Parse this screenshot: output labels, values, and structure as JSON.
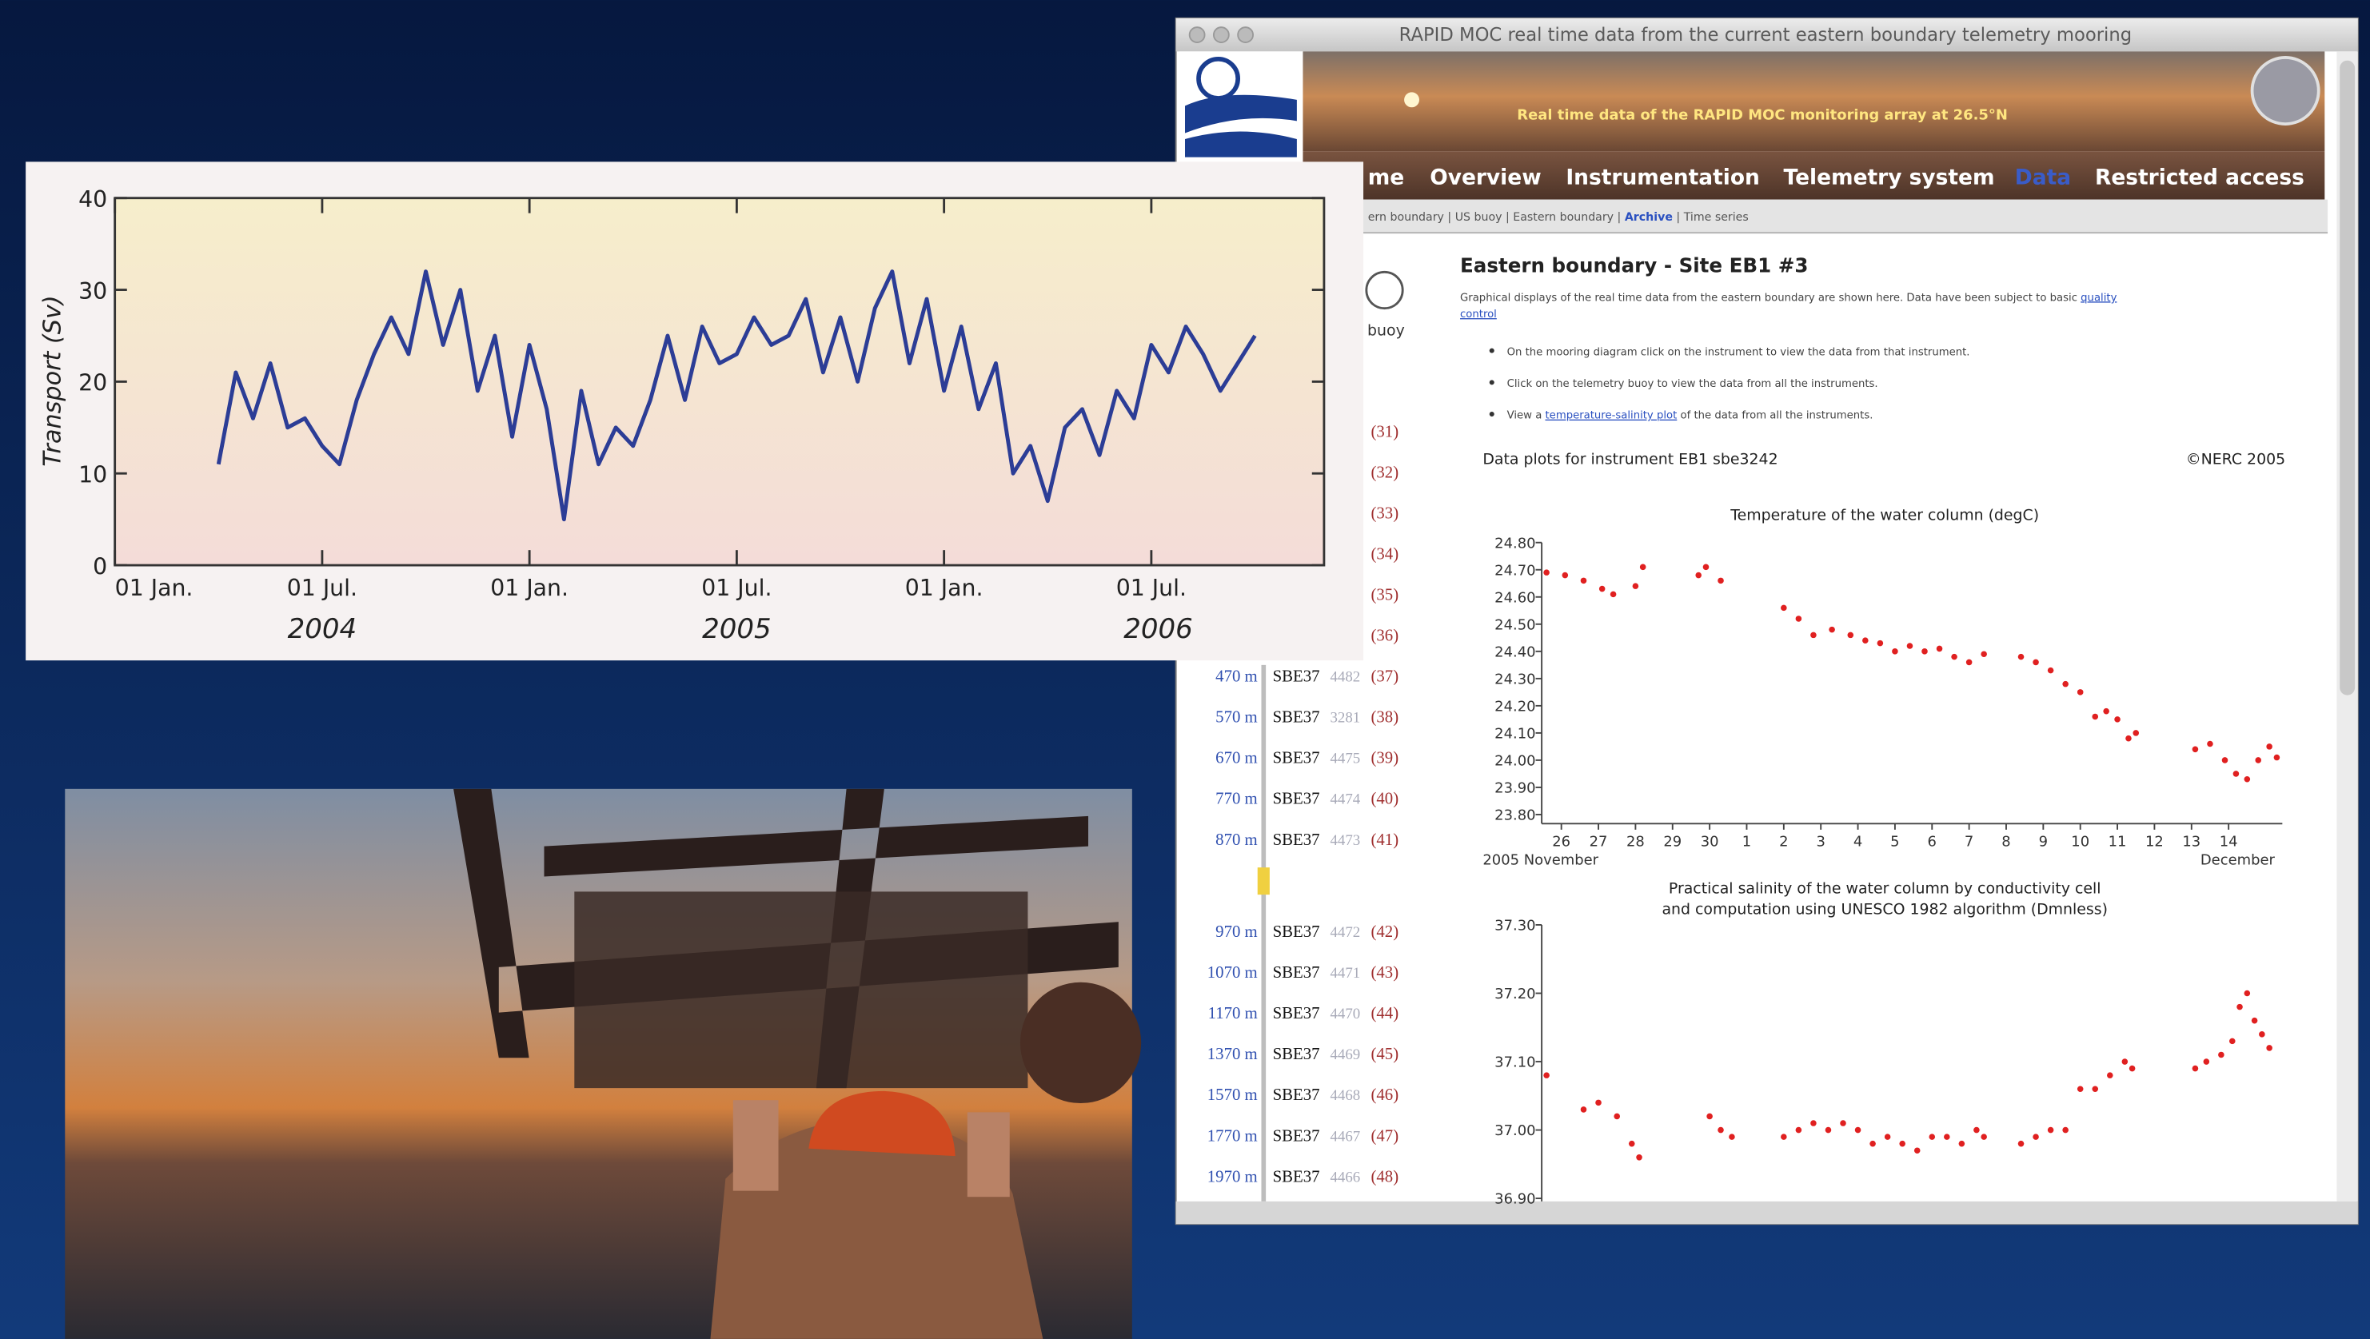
{
  "transport_chart": {
    "type": "line",
    "ylabel": "Transport (Sv)",
    "color": "#2c3d96",
    "xlim": [
      0,
      35
    ],
    "ylim": [
      0,
      40
    ],
    "yticks": [
      0,
      10,
      20,
      30,
      40
    ],
    "xticks": [
      {
        "value": 0,
        "label": "01 Jan."
      },
      {
        "value": 6,
        "label": "01 Jul."
      },
      {
        "value": 12,
        "label": "01 Jan."
      },
      {
        "value": 18,
        "label": "01 Jul."
      },
      {
        "value": 24,
        "label": "01 Jan."
      },
      {
        "value": 30,
        "label": "01 Jul."
      }
    ],
    "year_ticks": [
      {
        "value": 6,
        "label": "2004"
      },
      {
        "value": 18,
        "label": "2005"
      },
      {
        "value": 30.2,
        "label": "2006"
      }
    ],
    "x": [
      3.0,
      3.5,
      4.0,
      4.5,
      5.0,
      5.5,
      6.0,
      6.5,
      7.0,
      7.5,
      8.0,
      8.5,
      9.0,
      9.5,
      10.0,
      10.5,
      11.0,
      11.5,
      12.0,
      12.5,
      13.0,
      13.5,
      14.0,
      14.5,
      15.0,
      15.5,
      16.0,
      16.5,
      17.0,
      17.5,
      18.0,
      18.5,
      19.0,
      19.5,
      20.0,
      20.5,
      21.0,
      21.5,
      22.0,
      22.5,
      23.0,
      23.5,
      24.0,
      24.5,
      25.0,
      25.5,
      26.0,
      26.5,
      27.0,
      27.5,
      28.0,
      28.5,
      29.0,
      29.5,
      30.0,
      30.5,
      31.0,
      31.5,
      32.0,
      32.5,
      33.0
    ],
    "values": [
      11,
      21,
      16,
      22,
      15,
      16,
      13,
      11,
      18,
      23,
      27,
      23,
      32,
      24,
      30,
      19,
      25,
      14,
      24,
      17,
      5,
      19,
      11,
      15,
      13,
      18,
      25,
      18,
      26,
      22,
      23,
      27,
      24,
      25,
      29,
      21,
      27,
      20,
      28,
      32,
      22,
      29,
      19,
      26,
      17,
      22,
      10,
      13,
      7,
      15,
      17,
      12,
      19,
      16,
      24,
      21,
      26,
      23,
      19,
      22,
      25
    ]
  },
  "window": {
    "title": "RAPID MOC real time data from the current eastern boundary telemetry mooring",
    "banner": "Real time data of the RAPID MOC monitoring array at 26.5°N",
    "nav": [
      "me",
      "Overview",
      "Instrumentation",
      "Telemetry system",
      "Data",
      "Restricted access"
    ],
    "breadcrumb": {
      "before": "ern boundary | US buoy | Eastern boundary | ",
      "active": "Archive",
      "after": " | Time series"
    },
    "sidebar": {
      "buoy": "buoy",
      "upper_indices": [
        "(31)",
        "(32)",
        "(33)",
        "(34)",
        "(35)",
        "(36)"
      ],
      "instruments": [
        {
          "depth": "470 m",
          "model": "SBE37",
          "serial": "4482",
          "index": "(37)"
        },
        {
          "depth": "570 m",
          "model": "SBE37",
          "serial": "3281",
          "index": "(38)"
        },
        {
          "depth": "670 m",
          "model": "SBE37",
          "serial": "4475",
          "index": "(39)"
        },
        {
          "depth": "770 m",
          "model": "SBE37",
          "serial": "4474",
          "index": "(40)"
        },
        {
          "depth": "870 m",
          "model": "SBE37",
          "serial": "4473",
          "index": "(41)"
        },
        {
          "depth": "970 m",
          "model": "SBE37",
          "serial": "4472",
          "index": "(42)"
        },
        {
          "depth": "1070 m",
          "model": "SBE37",
          "serial": "4471",
          "index": "(43)"
        },
        {
          "depth": "1170 m",
          "model": "SBE37",
          "serial": "4470",
          "index": "(44)"
        },
        {
          "depth": "1370 m",
          "model": "SBE37",
          "serial": "4469",
          "index": "(45)"
        },
        {
          "depth": "1570 m",
          "model": "SBE37",
          "serial": "4468",
          "index": "(46)"
        },
        {
          "depth": "1770 m",
          "model": "SBE37",
          "serial": "4467",
          "index": "(47)"
        },
        {
          "depth": "1970 m",
          "model": "SBE37",
          "serial": "4466",
          "index": "(48)"
        }
      ]
    },
    "heading": "Eastern boundary - Site EB1 #3",
    "intro": {
      "text": "Graphical displays of the real time data from the eastern boundary are shown here. Data have been subject to basic ",
      "link": [
        "quality",
        "control"
      ]
    },
    "bullets": [
      "On the mooring diagram click on the instrument to view the data from that instrument.",
      "Click on the telemetry buoy to view the data from all the instruments.",
      {
        "before": "View a ",
        "link": "temperature-salinity plot",
        "after": " of the data from all the instruments."
      }
    ],
    "data_plots_label": "Data plots for instrument EB1 sbe3242",
    "copyright": "©NERC 2005",
    "temperature_chart": {
      "type": "scatter",
      "title": "Temperature of the water column (degC)",
      "color": "#e02020",
      "xlim": [
        -0.53,
        19.45
      ],
      "ylim": [
        23.8,
        24.8
      ],
      "yticks": [
        {
          "value": 24.8,
          "label": "24.80"
        },
        {
          "value": 24.7,
          "label": "24.70"
        },
        {
          "value": 24.6,
          "label": "24.60"
        },
        {
          "value": 24.5,
          "label": "24.50"
        },
        {
          "value": 24.4,
          "label": "24.40"
        },
        {
          "value": 24.3,
          "label": "24.30"
        },
        {
          "value": 24.2,
          "label": "24.20"
        },
        {
          "value": 24.1,
          "label": "24.10"
        },
        {
          "value": 24.0,
          "label": "24.00"
        },
        {
          "value": 23.9,
          "label": "23.90"
        },
        {
          "value": 23.8,
          "label": "23.80"
        }
      ],
      "xticks": [
        {
          "value": 0,
          "label": "26"
        },
        {
          "value": 1,
          "label": "27"
        },
        {
          "value": 2,
          "label": "28"
        },
        {
          "value": 3,
          "label": "29"
        },
        {
          "value": 4,
          "label": "30"
        },
        {
          "value": 5,
          "label": "1"
        },
        {
          "value": 6,
          "label": "2"
        },
        {
          "value": 7,
          "label": "3"
        },
        {
          "value": 8,
          "label": "4"
        },
        {
          "value": 9,
          "label": "5"
        },
        {
          "value": 10,
          "label": "6"
        },
        {
          "value": 11,
          "label": "7"
        },
        {
          "value": 12,
          "label": "8"
        },
        {
          "value": 13,
          "label": "9"
        },
        {
          "value": 14,
          "label": "10"
        },
        {
          "value": 15,
          "label": "11"
        },
        {
          "value": 16,
          "label": "12"
        },
        {
          "value": 17,
          "label": "13"
        },
        {
          "value": 18,
          "label": "14"
        }
      ],
      "xlabel_left": "2005 November",
      "xlabel_right": "December",
      "x": [
        -0.4,
        0.1,
        0.6,
        1.1,
        1.4,
        2.0,
        2.2,
        3.7,
        3.9,
        4.3,
        6.0,
        6.4,
        6.8,
        7.3,
        7.8,
        8.2,
        8.6,
        9.0,
        9.4,
        9.8,
        10.2,
        10.6,
        11.0,
        11.4,
        12.4,
        12.8,
        13.2,
        13.6,
        14.0,
        14.4,
        14.7,
        15.0,
        15.3,
        15.5,
        17.1,
        17.5,
        17.9,
        18.2,
        18.5,
        18.8,
        19.1,
        19.3
      ],
      "values": [
        24.69,
        24.68,
        24.66,
        24.63,
        24.61,
        24.64,
        24.71,
        24.68,
        24.71,
        24.66,
        24.56,
        24.52,
        24.46,
        24.48,
        24.46,
        24.44,
        24.43,
        24.4,
        24.42,
        24.4,
        24.41,
        24.38,
        24.36,
        24.39,
        24.38,
        24.36,
        24.33,
        24.28,
        24.25,
        24.16,
        24.18,
        24.15,
        24.08,
        24.1,
        24.04,
        24.06,
        24.0,
        23.95,
        23.93,
        24.0,
        24.05,
        24.01
      ]
    },
    "salinity_chart": {
      "type": "scatter",
      "title": [
        "Practical salinity of the water column by conductivity cell",
        "and computation using UNESCO 1982 algorithm (Dmnless)"
      ],
      "color": "#e02020",
      "xlim": [
        -0.53,
        19.45
      ],
      "ylim": [
        36.9,
        37.3
      ],
      "yticks": [
        {
          "value": 37.3,
          "label": "37.30"
        },
        {
          "value": 37.2,
          "label": "37.20"
        },
        {
          "value": 37.1,
          "label": "37.10"
        },
        {
          "value": 37.0,
          "label": "37.00"
        },
        {
          "value": 36.9,
          "label": "36.90"
        }
      ],
      "x": [
        -0.4,
        0.6,
        1.0,
        1.5,
        1.9,
        2.1,
        4.0,
        4.3,
        4.6,
        6.0,
        6.4,
        6.8,
        7.2,
        7.6,
        8.0,
        8.4,
        8.8,
        9.2,
        9.6,
        10.0,
        10.4,
        10.8,
        11.2,
        11.4,
        12.4,
        12.8,
        13.2,
        13.6,
        14.0,
        14.4,
        14.8,
        15.2,
        15.4,
        17.1,
        17.4,
        17.8,
        18.1,
        18.3,
        18.5,
        18.7,
        18.9,
        19.1
      ],
      "values": [
        37.08,
        37.03,
        37.04,
        37.02,
        36.98,
        36.96,
        37.02,
        37.0,
        36.99,
        36.99,
        37.0,
        37.01,
        37.0,
        37.01,
        37.0,
        36.98,
        36.99,
        36.98,
        36.97,
        36.99,
        36.99,
        36.98,
        37.0,
        36.99,
        36.98,
        36.99,
        37.0,
        37.0,
        37.06,
        37.06,
        37.08,
        37.1,
        37.09,
        37.09,
        37.1,
        37.11,
        37.13,
        37.18,
        37.2,
        37.16,
        37.14,
        37.12
      ]
    }
  }
}
